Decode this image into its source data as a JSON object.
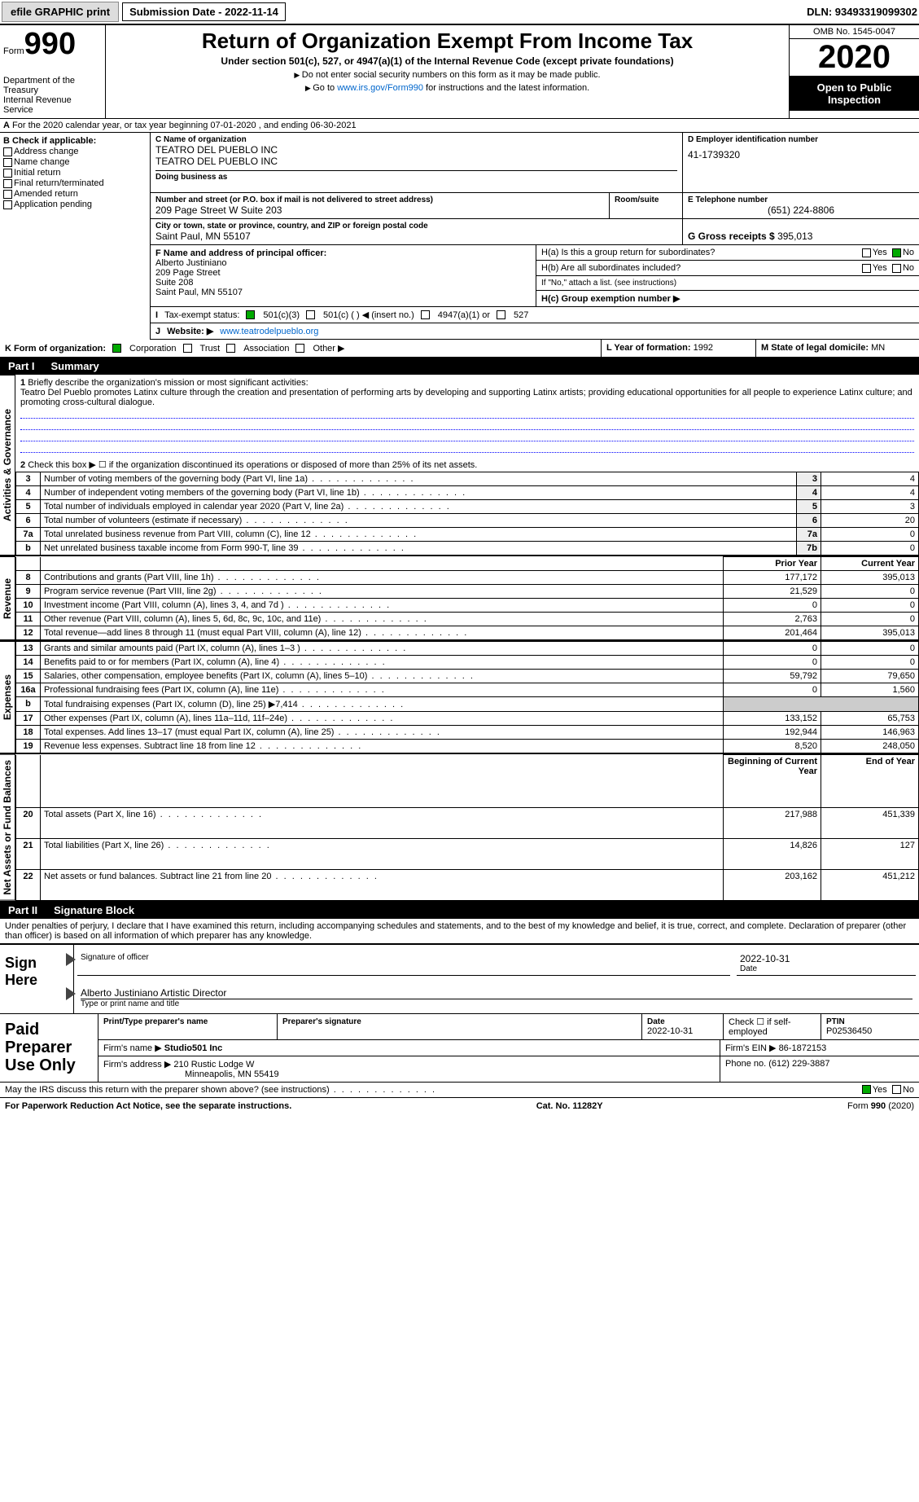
{
  "topbar": {
    "efile": "efile GRAPHIC print",
    "submission": "Submission Date - 2022-11-14",
    "dln": "DLN: 93493319099302"
  },
  "header": {
    "form_label": "Form",
    "form_num": "990",
    "title": "Return of Organization Exempt From Income Tax",
    "subtitle": "Under section 501(c), 527, or 4947(a)(1) of the Internal Revenue Code (except private foundations)",
    "note1": "Do not enter social security numbers on this form as it may be made public.",
    "note2_pre": "Go to ",
    "note2_link": "www.irs.gov/Form990",
    "note2_post": " for instructions and the latest information.",
    "dept": "Department of the Treasury\nInternal Revenue Service",
    "omb": "OMB No. 1545-0047",
    "year": "2020",
    "oti": "Open to Public Inspection"
  },
  "rowA": {
    "text": "For the 2020 calendar year, or tax year beginning 07-01-2020    , and ending 06-30-2021"
  },
  "boxB": {
    "title": "B Check if applicable:",
    "items": [
      "Address change",
      "Name change",
      "Initial return",
      "Final return/terminated",
      "Amended return",
      "Application pending"
    ]
  },
  "boxC": {
    "label": "C Name of organization",
    "line1": "TEATRO DEL PUEBLO INC",
    "line2": "TEATRO DEL PUEBLO INC",
    "dba": "Doing business as",
    "addr_label": "Number and street (or P.O. box if mail is not delivered to street address)",
    "room": "Room/suite",
    "addr": "209 Page Street W Suite 203",
    "city_label": "City or town, state or province, country, and ZIP or foreign postal code",
    "city": "Saint Paul, MN  55107"
  },
  "boxD": {
    "label": "D Employer identification number",
    "val": "41-1739320"
  },
  "boxE": {
    "label": "E Telephone number",
    "val": "(651) 224-8806"
  },
  "boxG": {
    "label": "G Gross receipts $",
    "val": "395,013"
  },
  "boxF": {
    "label": "F  Name and address of principal officer:",
    "name": "Alberto Justiniano",
    "l1": "209 Page Street",
    "l2": "Suite 208",
    "l3": "Saint Paul, MN  55107"
  },
  "boxH": {
    "a": "H(a)  Is this a group return for subordinates?",
    "b": "H(b)  Are all subordinates included?",
    "bnote": "If \"No,\" attach a list. (see instructions)",
    "c": "H(c)  Group exemption number ▶",
    "yes": "Yes",
    "no": "No"
  },
  "rowI": {
    "label": "Tax-exempt status:",
    "o1": "501(c)(3)",
    "o2": "501(c) (  ) ◀ (insert no.)",
    "o3": "4947(a)(1) or",
    "o4": "527"
  },
  "rowJ": {
    "label": "J",
    "text": "Website: ▶",
    "url": "www.teatrodelpueblo.org"
  },
  "rowK": {
    "label": "K Form of organization:",
    "o1": "Corporation",
    "o2": "Trust",
    "o3": "Association",
    "o4": "Other ▶"
  },
  "rowL": {
    "label": "L Year of formation:",
    "val": "1992"
  },
  "rowM": {
    "label": "M State of legal domicile:",
    "val": "MN"
  },
  "part1": {
    "label": "Part I",
    "title": "Summary"
  },
  "summary": {
    "q1": {
      "n": "1",
      "text": "Briefly describe the organization's mission or most significant activities:",
      "mission": "Teatro Del Pueblo promotes Latinx culture through the creation and presentation of performing arts by developing and supporting Latinx artists; providing educational opportunities for all people to experience Latinx culture; and promoting cross-cultural dialogue."
    },
    "q2": {
      "n": "2",
      "text": "Check this box ▶ ☐ if the organization discontinued its operations or disposed of more than 25% of its net assets."
    },
    "lines": [
      {
        "n": "3",
        "text": "Number of voting members of the governing body (Part VI, line 1a)",
        "ln": "3",
        "val": "4"
      },
      {
        "n": "4",
        "text": "Number of independent voting members of the governing body (Part VI, line 1b)",
        "ln": "4",
        "val": "4"
      },
      {
        "n": "5",
        "text": "Total number of individuals employed in calendar year 2020 (Part V, line 2a)",
        "ln": "5",
        "val": "3"
      },
      {
        "n": "6",
        "text": "Total number of volunteers (estimate if necessary)",
        "ln": "6",
        "val": "20"
      },
      {
        "n": "7a",
        "text": "Total unrelated business revenue from Part VIII, column (C), line 12",
        "ln": "7a",
        "val": "0"
      },
      {
        "n": "b",
        "text": "Net unrelated business taxable income from Form 990-T, line 39",
        "ln": "7b",
        "val": "0"
      }
    ],
    "hdr_prior": "Prior Year",
    "hdr_curr": "Current Year",
    "revenue": [
      {
        "n": "8",
        "text": "Contributions and grants (Part VIII, line 1h)",
        "p": "177,172",
        "c": "395,013"
      },
      {
        "n": "9",
        "text": "Program service revenue (Part VIII, line 2g)",
        "p": "21,529",
        "c": "0"
      },
      {
        "n": "10",
        "text": "Investment income (Part VIII, column (A), lines 3, 4, and 7d )",
        "p": "0",
        "c": "0"
      },
      {
        "n": "11",
        "text": "Other revenue (Part VIII, column (A), lines 5, 6d, 8c, 9c, 10c, and 11e)",
        "p": "2,763",
        "c": "0"
      },
      {
        "n": "12",
        "text": "Total revenue—add lines 8 through 11 (must equal Part VIII, column (A), line 12)",
        "p": "201,464",
        "c": "395,013"
      }
    ],
    "expenses": [
      {
        "n": "13",
        "text": "Grants and similar amounts paid (Part IX, column (A), lines 1–3 )",
        "p": "0",
        "c": "0"
      },
      {
        "n": "14",
        "text": "Benefits paid to or for members (Part IX, column (A), line 4)",
        "p": "0",
        "c": "0"
      },
      {
        "n": "15",
        "text": "Salaries, other compensation, employee benefits (Part IX, column (A), lines 5–10)",
        "p": "59,792",
        "c": "79,650"
      },
      {
        "n": "16a",
        "text": "Professional fundraising fees (Part IX, column (A), line 11e)",
        "p": "0",
        "c": "1,560"
      },
      {
        "n": "b",
        "text": "Total fundraising expenses (Part IX, column (D), line 25) ▶7,414",
        "p": "",
        "c": ""
      },
      {
        "n": "17",
        "text": "Other expenses (Part IX, column (A), lines 11a–11d, 11f–24e)",
        "p": "133,152",
        "c": "65,753"
      },
      {
        "n": "18",
        "text": "Total expenses. Add lines 13–17 (must equal Part IX, column (A), line 25)",
        "p": "192,944",
        "c": "146,963"
      },
      {
        "n": "19",
        "text": "Revenue less expenses. Subtract line 18 from line 12",
        "p": "8,520",
        "c": "248,050"
      }
    ],
    "hdr_boy": "Beginning of Current Year",
    "hdr_eoy": "End of Year",
    "net": [
      {
        "n": "20",
        "text": "Total assets (Part X, line 16)",
        "p": "217,988",
        "c": "451,339"
      },
      {
        "n": "21",
        "text": "Total liabilities (Part X, line 26)",
        "p": "14,826",
        "c": "127"
      },
      {
        "n": "22",
        "text": "Net assets or fund balances. Subtract line 21 from line 20",
        "p": "203,162",
        "c": "451,212"
      }
    ],
    "vlabels": {
      "ag": "Activities & Governance",
      "rev": "Revenue",
      "exp": "Expenses",
      "net": "Net Assets or Fund Balances"
    }
  },
  "part2": {
    "label": "Part II",
    "title": "Signature Block",
    "decl": "Under penalties of perjury, I declare that I have examined this return, including accompanying schedules and statements, and to the best of my knowledge and belief, it is true, correct, and complete. Declaration of preparer (other than officer) is based on all information of which preparer has any knowledge."
  },
  "sign": {
    "here": "Sign Here",
    "sig_officer": "Signature of officer",
    "date": "Date",
    "date_val": "2022-10-31",
    "name": "Alberto Justiniano  Artistic Director",
    "name_label": "Type or print name and title"
  },
  "prep": {
    "title": "Paid Preparer Use Only",
    "h1": "Print/Type preparer's name",
    "h2": "Preparer's signature",
    "h3": "Date",
    "h3v": "2022-10-31",
    "h4": "Check ☐ if self-employed",
    "h5": "PTIN",
    "h5v": "P02536450",
    "firm_l": "Firm's name    ▶",
    "firm": "Studio501 Inc",
    "ein_l": "Firm's EIN ▶",
    "ein": "86-1872153",
    "addr_l": "Firm's address ▶",
    "addr1": "210 Rustic Lodge W",
    "addr2": "Minneapolis, MN  55419",
    "phone_l": "Phone no.",
    "phone": "(612) 229-3887"
  },
  "may": {
    "text": "May the IRS discuss this return with the preparer shown above? (see instructions)",
    "yes": "Yes",
    "no": "No"
  },
  "foot": {
    "l": "For Paperwork Reduction Act Notice, see the separate instructions.",
    "m": "Cat. No. 11282Y",
    "r": "Form 990 (2020)"
  }
}
